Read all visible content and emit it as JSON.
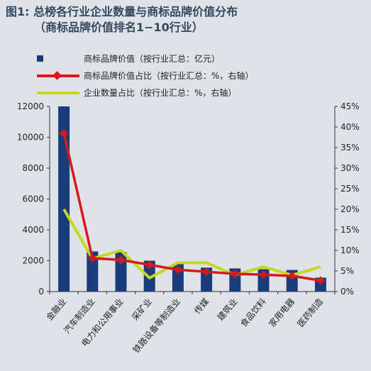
{
  "title_line1": "图1: 总榜各行业企业数量与商标品牌价值分布",
  "title_line2": "（商标品牌价值排名1−10行业）",
  "colors": {
    "bar": "#1a3c7a",
    "brand_share_line": "#d7191c",
    "company_share_line": "#c4d81e",
    "background": "#dfe3e8"
  },
  "chart_data": {
    "type": "bar",
    "categories": [
      "金融业",
      "汽车制造业",
      "电力和公用事业",
      "采矿业",
      "铁路设备等制造业",
      "传媒",
      "建筑业",
      "食品饮料",
      "家用电器",
      "医药制造"
    ],
    "series": [
      {
        "name": "商标品牌价值（按行业汇总：亿元）",
        "type": "bar",
        "axis": "left",
        "values": [
          12200,
          2600,
          2550,
          2000,
          1800,
          1550,
          1500,
          1450,
          1400,
          900
        ]
      },
      {
        "name": "商标品牌价值占比（按行业汇总：%，右轴）",
        "type": "line",
        "axis": "right",
        "values": [
          38.5,
          8.1,
          7.7,
          6.5,
          5.3,
          4.8,
          4.3,
          4.1,
          3.8,
          2.7
        ]
      },
      {
        "name": "企业数量占比（按行业汇总：%，右轴）",
        "type": "line",
        "axis": "right",
        "values": [
          20,
          8,
          10,
          3.3,
          7,
          7,
          4,
          6,
          4,
          6
        ]
      }
    ],
    "left_axis": {
      "ylim": [
        0,
        12000
      ],
      "ticks": [
        "0",
        "2000",
        "4000",
        "6000",
        "8000",
        "10000",
        "12000"
      ]
    },
    "right_axis": {
      "ylim": [
        0,
        45
      ],
      "ticks": [
        "0%",
        "5%",
        "10%",
        "15%",
        "20%",
        "25%",
        "30%",
        "35%",
        "40%",
        "45%"
      ]
    },
    "legend_placement": "top-left",
    "grid": false
  }
}
